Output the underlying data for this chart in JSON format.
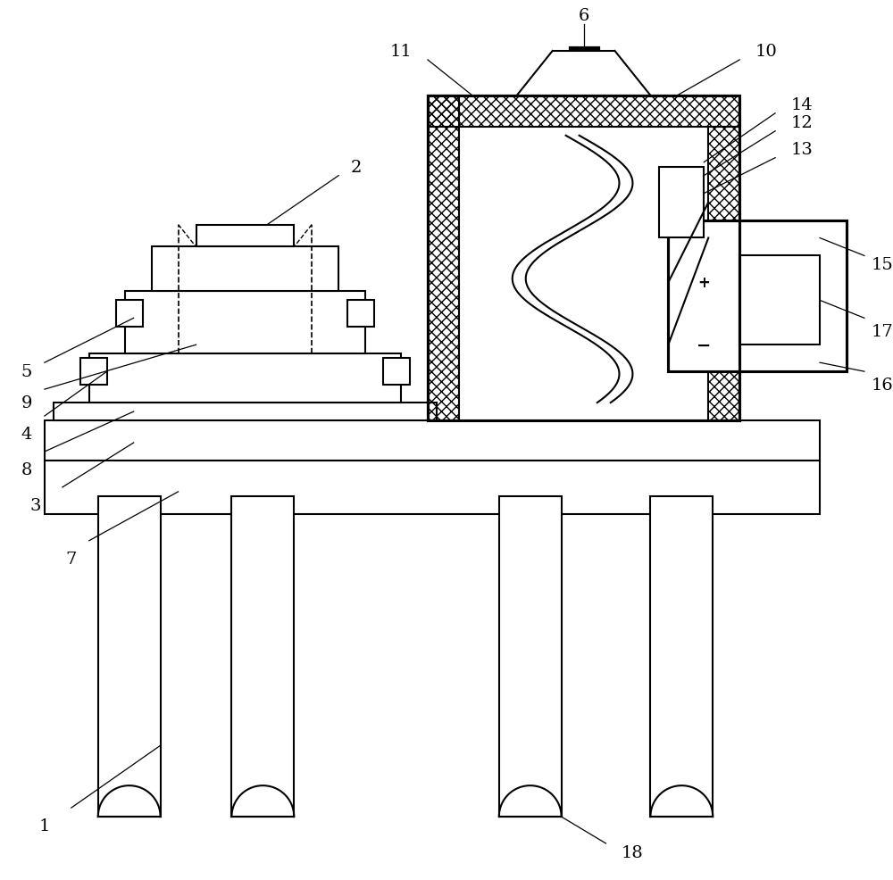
{
  "background_color": "#ffffff",
  "line_color": "#000000",
  "lw": 1.5,
  "fig_width": 10.0,
  "fig_height": 9.87
}
